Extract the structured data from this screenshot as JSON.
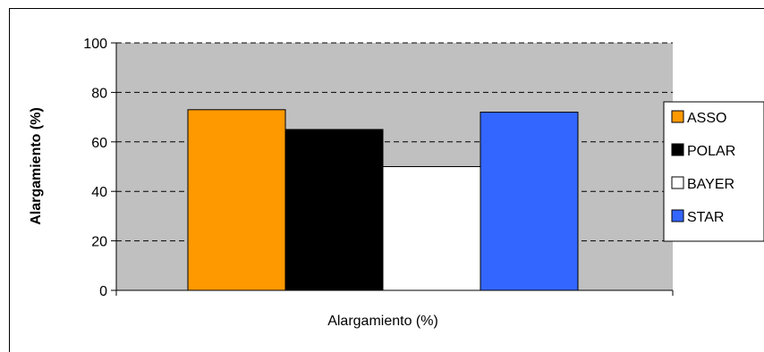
{
  "chart_data": {
    "type": "bar",
    "categories": [
      "Alargamiento (%)"
    ],
    "series": [
      {
        "name": "ASSO",
        "values": [
          73
        ],
        "color": "#FF9900"
      },
      {
        "name": "POLAR",
        "values": [
          65
        ],
        "color": "#000000"
      },
      {
        "name": "BAYER",
        "values": [
          50
        ],
        "color": "#FFFFFF"
      },
      {
        "name": "STAR",
        "values": [
          72
        ],
        "color": "#3366FF"
      }
    ],
    "title": "",
    "xlabel": "Alargamiento (%)",
    "ylabel": "Alargamiento (%)",
    "ylim": [
      0,
      100
    ],
    "yticks": [
      0,
      20,
      40,
      60,
      80,
      100
    ],
    "grid": "dashed horizontal",
    "plot_background": "#C0C0C0",
    "legend_position": "right"
  }
}
